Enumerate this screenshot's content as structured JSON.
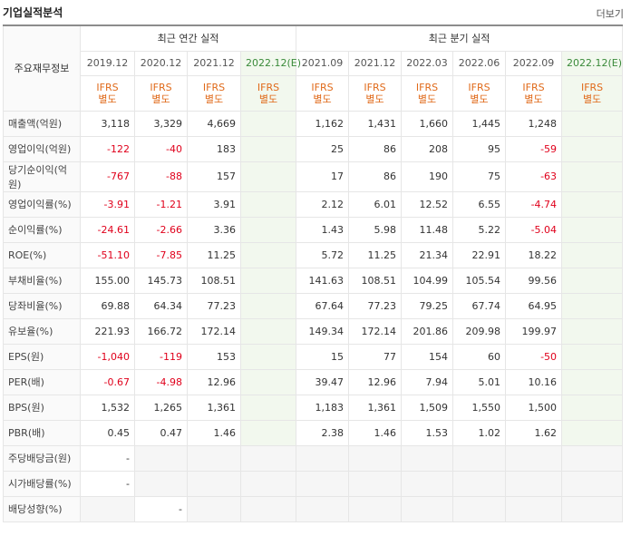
{
  "header": {
    "title": "기업실적분석",
    "more_label": "더보기"
  },
  "table": {
    "corner_label": "주요재무정보",
    "annual_group": "최근 연간 실적",
    "quarter_group": "최근 분기 실적",
    "periods": [
      "2019.12",
      "2020.12",
      "2021.12",
      "2022.12(E)",
      "2021.09",
      "2021.12",
      "2022.03",
      "2022.06",
      "2022.09",
      "2022.12(E)"
    ],
    "basis_line1": "IFRS",
    "basis_line2": "별도",
    "rows": [
      {
        "label": "매출액(억원)",
        "values": [
          "3,118",
          "3,329",
          "4,669",
          "",
          "1,162",
          "1,431",
          "1,660",
          "1,445",
          "1,248",
          ""
        ]
      },
      {
        "label": "영업이익(억원)",
        "values": [
          "-122",
          "-40",
          "183",
          "",
          "25",
          "86",
          "208",
          "95",
          "-59",
          ""
        ]
      },
      {
        "label": "당기순이익(억원)",
        "values": [
          "-767",
          "-88",
          "157",
          "",
          "17",
          "86",
          "190",
          "75",
          "-63",
          ""
        ]
      },
      {
        "label": "영업이익률(%)",
        "values": [
          "-3.91",
          "-1.21",
          "3.91",
          "",
          "2.12",
          "6.01",
          "12.52",
          "6.55",
          "-4.74",
          ""
        ]
      },
      {
        "label": "순이익률(%)",
        "values": [
          "-24.61",
          "-2.66",
          "3.36",
          "",
          "1.43",
          "5.98",
          "11.48",
          "5.22",
          "-5.04",
          ""
        ]
      },
      {
        "label": "ROE(%)",
        "values": [
          "-51.10",
          "-7.85",
          "11.25",
          "",
          "5.72",
          "11.25",
          "21.34",
          "22.91",
          "18.22",
          ""
        ]
      },
      {
        "label": "부채비율(%)",
        "values": [
          "155.00",
          "145.73",
          "108.51",
          "",
          "141.63",
          "108.51",
          "104.99",
          "105.54",
          "99.56",
          ""
        ]
      },
      {
        "label": "당좌비율(%)",
        "values": [
          "69.88",
          "64.34",
          "77.23",
          "",
          "67.64",
          "77.23",
          "79.25",
          "67.74",
          "64.95",
          ""
        ]
      },
      {
        "label": "유보율(%)",
        "values": [
          "221.93",
          "166.72",
          "172.14",
          "",
          "149.34",
          "172.14",
          "201.86",
          "209.98",
          "199.97",
          ""
        ]
      },
      {
        "label": "EPS(원)",
        "values": [
          "-1,040",
          "-119",
          "153",
          "",
          "15",
          "77",
          "154",
          "60",
          "-50",
          ""
        ]
      },
      {
        "label": "PER(배)",
        "values": [
          "-0.67",
          "-4.98",
          "12.96",
          "",
          "39.47",
          "12.96",
          "7.94",
          "5.01",
          "10.16",
          ""
        ]
      },
      {
        "label": "BPS(원)",
        "values": [
          "1,532",
          "1,265",
          "1,361",
          "",
          "1,183",
          "1,361",
          "1,509",
          "1,550",
          "1,500",
          ""
        ]
      },
      {
        "label": "PBR(배)",
        "values": [
          "0.45",
          "0.47",
          "1.46",
          "",
          "2.38",
          "1.46",
          "1.53",
          "1.02",
          "1.62",
          ""
        ]
      },
      {
        "label": "주당배당금(원)",
        "values": [
          "-",
          "",
          "",
          "",
          "",
          "",
          "",
          "",
          "",
          ""
        ]
      },
      {
        "label": "시가배당률(%)",
        "values": [
          "-",
          "",
          "",
          "",
          "",
          "",
          "",
          "",
          "",
          ""
        ]
      },
      {
        "label": "배당성향(%)",
        "values": [
          "",
          "-",
          "",
          "",
          "",
          "",
          "",
          "",
          "",
          ""
        ]
      }
    ]
  }
}
